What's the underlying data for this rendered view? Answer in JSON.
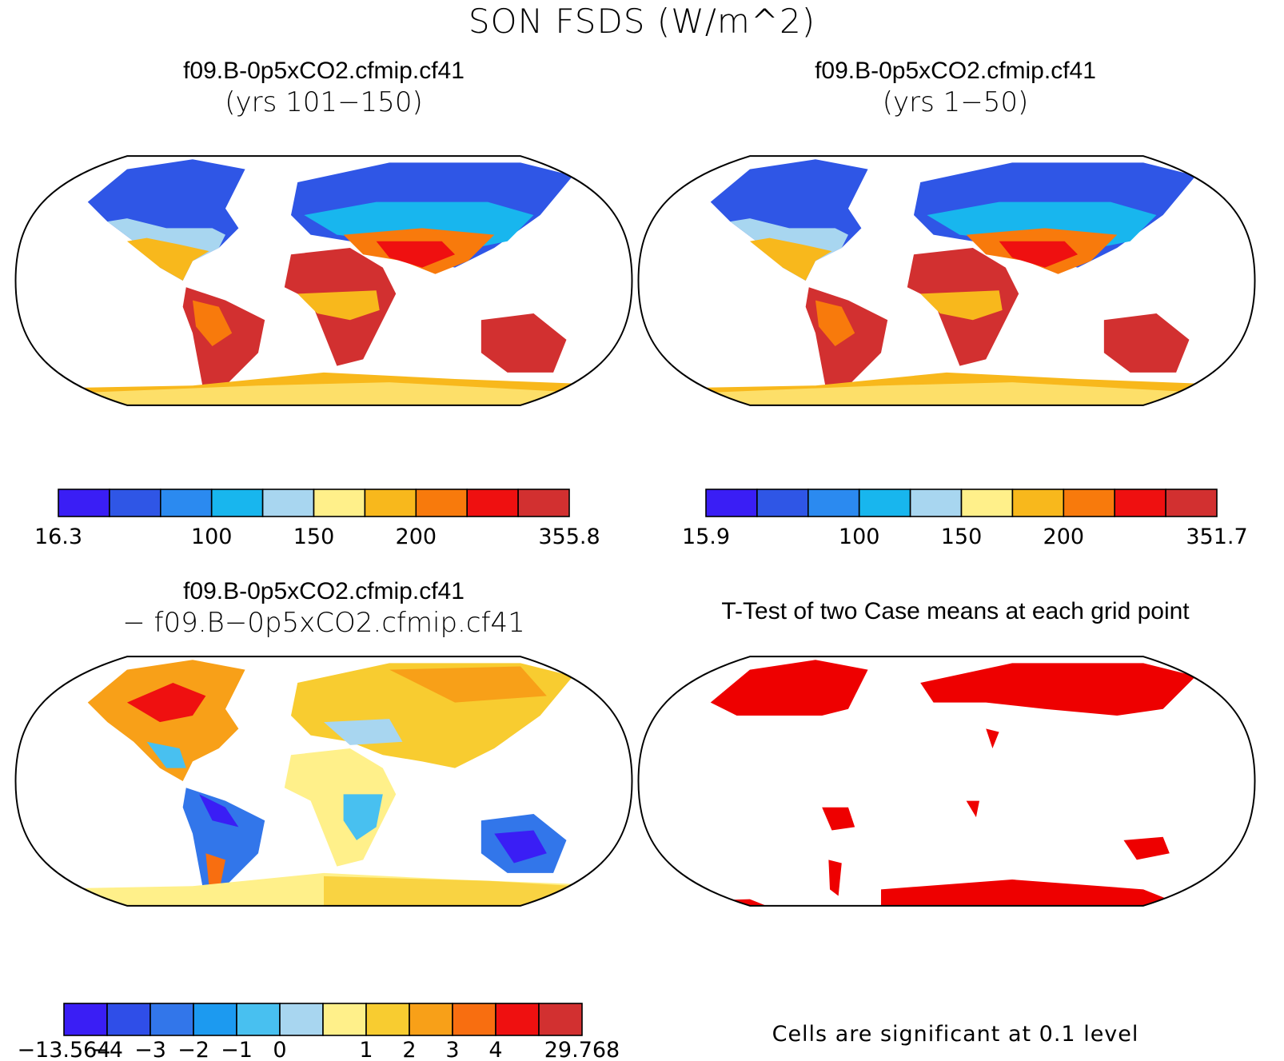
{
  "figure_title": "SON FSDS (W/m^2)",
  "panels": [
    {
      "id": "case1",
      "title_line1": "f09.B-0p5xCO2.cfmip.cf41",
      "title_line2": "(yrs 101−150)",
      "colorbar": {
        "colors": [
          "#3a1ef5",
          "#2f56e6",
          "#2b8af0",
          "#18b6ee",
          "#a8d6f0",
          "#fff08a",
          "#f8b81c",
          "#f87a0c",
          "#ef1010",
          "#d23030"
        ],
        "labels": [
          "16.3",
          "100",
          "150",
          "200",
          "355.8"
        ],
        "label_boundary_index": [
          0,
          3,
          5,
          7,
          10
        ]
      }
    },
    {
      "id": "case2",
      "title_line1": "f09.B-0p5xCO2.cfmip.cf41",
      "title_line2": "(yrs 1−50)",
      "colorbar": {
        "colors": [
          "#3a1ef5",
          "#2f56e6",
          "#2b8af0",
          "#18b6ee",
          "#a8d6f0",
          "#fff08a",
          "#f8b81c",
          "#f87a0c",
          "#ef1010",
          "#d23030"
        ],
        "labels": [
          "15.9",
          "100",
          "150",
          "200",
          "351.7"
        ],
        "label_boundary_index": [
          0,
          3,
          5,
          7,
          10
        ]
      }
    },
    {
      "id": "difference",
      "title_line1": "f09.B-0p5xCO2.cfmip.cf41",
      "title_line2": "− f09.B−0p5xCO2.cfmip.cf41",
      "colorbar": {
        "colors": [
          "#3a1ef5",
          "#2f4ee8",
          "#3276ea",
          "#1c9af0",
          "#48c0f0",
          "#a8d6f0",
          "#fff08a",
          "#f8cc30",
          "#f8a018",
          "#f86e10",
          "#ef1010",
          "#d23030"
        ],
        "labels": [
          "−13.564",
          "−4",
          "−3",
          "−2",
          "−1",
          "0",
          "1",
          "2",
          "3",
          "4",
          "29.768"
        ],
        "label_boundary_index": [
          0,
          1,
          2,
          3,
          4,
          5,
          7,
          8,
          9,
          10,
          12
        ]
      }
    },
    {
      "id": "ttest",
      "title_line1": "T-Test of two Case means at each grid point",
      "note": "Cells are significant at 0.1 level",
      "significant_color": "#ee0000"
    }
  ]
}
